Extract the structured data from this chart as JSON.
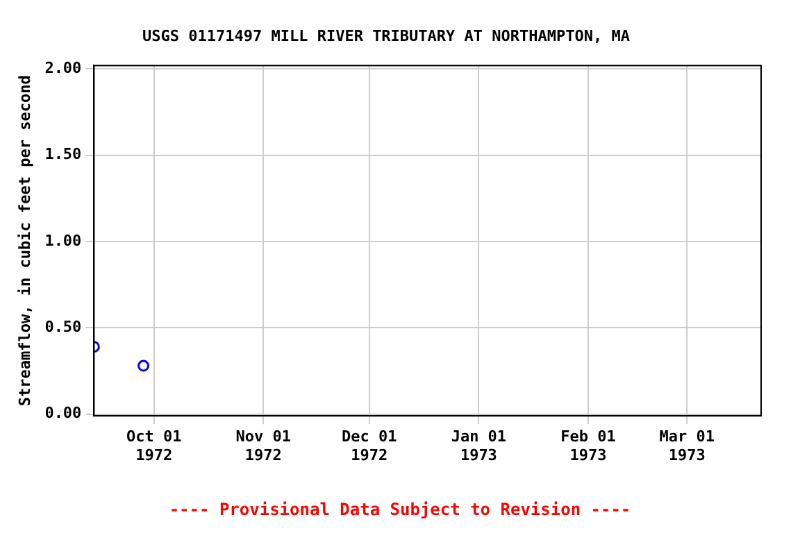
{
  "chart_data": {
    "type": "scatter",
    "title": "USGS 01171497 MILL RIVER TRIBUTARY AT NORTHAMPTON, MA",
    "ylabel": "Streamflow, in cubic feet per second",
    "annotations": [
      "---- Provisional Data Subject to Revision ----"
    ],
    "x": [
      "1972-09-14",
      "1972-09-28"
    ],
    "series": [
      {
        "color": "#0000ff",
        "values": [
          0.39,
          0.28
        ]
      }
    ],
    "xlim": [
      "1972-09-14",
      "1973-03-22"
    ],
    "xticks": [
      {
        "value": "1972-10-01",
        "label": "Oct 01\n1972"
      },
      {
        "value": "1972-11-01",
        "label": "Nov 01\n1972"
      },
      {
        "value": "1972-12-01",
        "label": "Dec 01\n1972"
      },
      {
        "value": "1973-01-01",
        "label": "Jan 01\n1973"
      },
      {
        "value": "1973-02-01",
        "label": "Feb 01\n1973"
      },
      {
        "value": "1973-03-01",
        "label": "Mar 01\n1973"
      }
    ],
    "ylim": [
      -0.01,
      2.02
    ],
    "yticks": [
      {
        "value": 0,
        "label": "0.00"
      },
      {
        "value": 0.5,
        "label": "0.50"
      },
      {
        "value": 1,
        "label": "1.00"
      },
      {
        "value": 1.5,
        "label": "1.50"
      },
      {
        "value": 2,
        "label": "2.00"
      }
    ],
    "grid": true,
    "marker": "circle"
  }
}
